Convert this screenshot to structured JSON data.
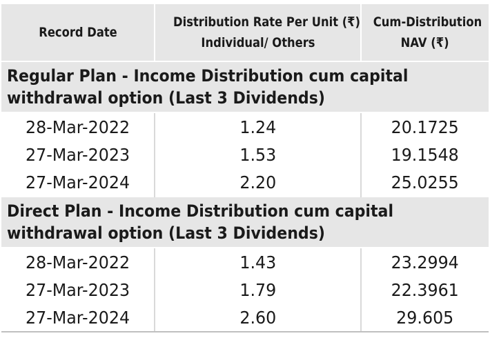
{
  "headers": {
    "record_date": "Record Date",
    "rate_line1": "Distribution Rate Per Unit  (₹)",
    "rate_line2": "Individual/ Others",
    "nav_line1": "Cum-Distribution",
    "nav_line2": "NAV (₹)"
  },
  "sections": [
    {
      "title_line1": "Regular Plan - Income Distribution cum capital",
      "title_line2": "withdrawal option (Last 3 Dividends)",
      "rows": [
        {
          "date": "28-Mar-2022",
          "rate": "1.24",
          "nav": "20.1725"
        },
        {
          "date": "27-Mar-2023",
          "rate": "1.53",
          "nav": "19.1548"
        },
        {
          "date": "27-Mar-2024",
          "rate": "2.20",
          "nav": "25.0255"
        }
      ]
    },
    {
      "title_line1": "Direct Plan - Income Distribution cum capital",
      "title_line2": "withdrawal option (Last 3 Dividends)",
      "rows": [
        {
          "date": "28-Mar-2022",
          "rate": "1.43",
          "nav": "23.2994"
        },
        {
          "date": "27-Mar-2023",
          "rate": "1.79",
          "nav": "22.3961"
        },
        {
          "date": "27-Mar-2024",
          "rate": "2.60",
          "nav": "29.605"
        }
      ]
    }
  ],
  "colors": {
    "header_bg": "#e6e6e6",
    "text": "#1a1a1a",
    "divider": "#d9d9d9"
  }
}
